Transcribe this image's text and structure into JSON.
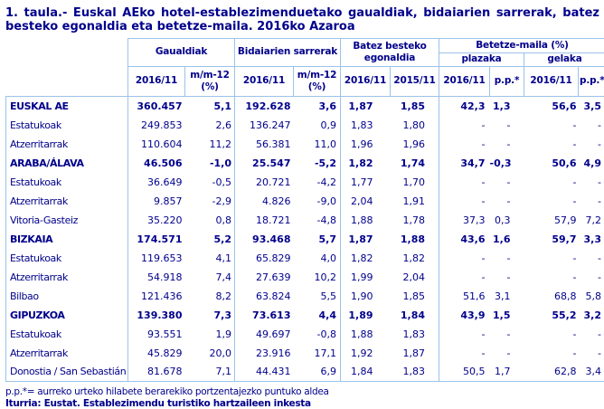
{
  "title": "1. taula.- Euskal AEko hotel-establezimenduetako gaualdiak, bidaiarien sarrerak, batez besteko egonaldia eta betetze-maila. 2016ko Azaroa",
  "colors": {
    "text_navy": "#00008B",
    "border_blue": "#9CC3E8"
  },
  "table": {
    "column_groups": [
      {
        "label": "Gaualdiak",
        "columns": [
          "2016/11",
          "m/m-12 (%)"
        ]
      },
      {
        "label": "Bidaiarien sarrerak",
        "columns": [
          "2016/11",
          "m/m-12 (%)"
        ]
      },
      {
        "label": "Batez besteko egonaldia",
        "columns": [
          "2016/11",
          "2015/11"
        ]
      },
      {
        "label": "Betetze-maila (%)",
        "subgroups": [
          {
            "label": "plazaka",
            "columns": [
              "2016/11",
              "p.p.*"
            ]
          },
          {
            "label": "gelaka",
            "columns": [
              "2016/11",
              "p.p.*"
            ]
          }
        ]
      }
    ],
    "rows": [
      {
        "label": "EUSKAL AE",
        "bold": true,
        "values": [
          "360.457",
          "5,1",
          "192.628",
          "3,6",
          "1,87",
          "1,85",
          "42,3",
          "1,3",
          "56,6",
          "3,5"
        ]
      },
      {
        "label": "Estatukoak",
        "bold": false,
        "values": [
          "249.853",
          "2,6",
          "136.247",
          "0,9",
          "1,83",
          "1,80",
          "-",
          "-",
          "-",
          "-"
        ]
      },
      {
        "label": "Atzerritarrak",
        "bold": false,
        "values": [
          "110.604",
          "11,2",
          "56.381",
          "11,0",
          "1,96",
          "1,96",
          "-",
          "-",
          "-",
          "-"
        ]
      },
      {
        "label": "ARABA/ÁLAVA",
        "bold": true,
        "values": [
          "46.506",
          "-1,0",
          "25.547",
          "-5,2",
          "1,82",
          "1,74",
          "34,7",
          "-0,3",
          "50,6",
          "4,9"
        ]
      },
      {
        "label": "Estatukoak",
        "bold": false,
        "values": [
          "36.649",
          "-0,5",
          "20.721",
          "-4,2",
          "1,77",
          "1,70",
          "-",
          "-",
          "-",
          "-"
        ]
      },
      {
        "label": "Atzerritarrak",
        "bold": false,
        "values": [
          "9.857",
          "-2,9",
          "4.826",
          "-9,0",
          "2,04",
          "1,91",
          "-",
          "-",
          "-",
          "-"
        ]
      },
      {
        "label": "Vitoria-Gasteiz",
        "bold": false,
        "values": [
          "35.220",
          "0,8",
          "18.721",
          "-4,8",
          "1,88",
          "1,78",
          "37,3",
          "0,3",
          "57,9",
          "7,2"
        ]
      },
      {
        "label": "BIZKAIA",
        "bold": true,
        "values": [
          "174.571",
          "5,2",
          "93.468",
          "5,7",
          "1,87",
          "1,88",
          "43,6",
          "1,6",
          "59,7",
          "3,3"
        ]
      },
      {
        "label": "Estatukoak",
        "bold": false,
        "values": [
          "119.653",
          "4,1",
          "65.829",
          "4,0",
          "1,82",
          "1,82",
          "-",
          "-",
          "-",
          "-"
        ]
      },
      {
        "label": "Atzerritarrak",
        "bold": false,
        "values": [
          "54.918",
          "7,4",
          "27.639",
          "10,2",
          "1,99",
          "2,04",
          "-",
          "-",
          "-",
          "-"
        ]
      },
      {
        "label": "Bilbao",
        "bold": false,
        "values": [
          "121.436",
          "8,2",
          "63.824",
          "5,5",
          "1,90",
          "1,85",
          "51,6",
          "3,1",
          "68,8",
          "5,8"
        ]
      },
      {
        "label": "GIPUZKOA",
        "bold": true,
        "values": [
          "139.380",
          "7,3",
          "73.613",
          "4,4",
          "1,89",
          "1,84",
          "43,9",
          "1,5",
          "55,2",
          "3,2"
        ]
      },
      {
        "label": "Estatukoak",
        "bold": false,
        "values": [
          "93.551",
          "1,9",
          "49.697",
          "-0,8",
          "1,88",
          "1,83",
          "-",
          "-",
          "-",
          "-"
        ]
      },
      {
        "label": "Atzerritarrak",
        "bold": false,
        "values": [
          "45.829",
          "20,0",
          "23.916",
          "17,1",
          "1,92",
          "1,87",
          "-",
          "-",
          "-",
          "-"
        ]
      },
      {
        "label": "Donostia / San Sebastián",
        "bold": false,
        "values": [
          "81.678",
          "7,1",
          "44.431",
          "6,9",
          "1,84",
          "1,83",
          "50,5",
          "1,7",
          "62,8",
          "3,4"
        ]
      }
    ]
  },
  "footnote": "p.p.*= aurreko urteko hilabete berarekiko portzentajezko puntuko aldea",
  "source": "Iturria: Eustat. Establezimendu turistiko hartzaileen inkesta"
}
